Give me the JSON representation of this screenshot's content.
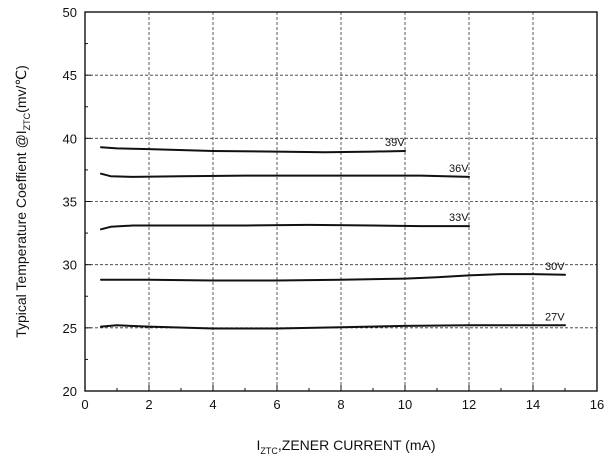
{
  "chart_data": {
    "type": "line",
    "title": "",
    "xlabel": {
      "main": "I",
      "sub": "ZTC",
      "rest": ",ZENER CURRENT (mA)"
    },
    "ylabel": {
      "main": "Typical Temperature Coeffient @I",
      "sub": "ZTC",
      "rest": "(mv/℃)"
    },
    "xlim": [
      0,
      16
    ],
    "ylim": [
      20,
      50
    ],
    "xticks": [
      0,
      2,
      4,
      6,
      8,
      10,
      12,
      14,
      16
    ],
    "yticks": [
      20,
      25,
      30,
      35,
      40,
      45,
      50
    ],
    "grid": true,
    "series": [
      {
        "name": "39V",
        "x": [
          0.5,
          1,
          2,
          4,
          6,
          7.5,
          9,
          10
        ],
        "y": [
          39.3,
          39.2,
          39.15,
          39.0,
          38.95,
          38.9,
          38.95,
          39.0
        ]
      },
      {
        "name": "36V",
        "x": [
          0.5,
          0.8,
          1.5,
          3,
          5,
          7,
          9,
          10.5,
          12
        ],
        "y": [
          37.2,
          37.0,
          36.95,
          37.0,
          37.05,
          37.05,
          37.05,
          37.05,
          36.95
        ]
      },
      {
        "name": "33V",
        "x": [
          0.5,
          0.8,
          1.5,
          3,
          5,
          7,
          9,
          10.5,
          12
        ],
        "y": [
          32.8,
          33.0,
          33.1,
          33.1,
          33.1,
          33.15,
          33.1,
          33.05,
          33.05
        ]
      },
      {
        "name": "30V",
        "x": [
          0.5,
          2,
          4,
          6,
          8,
          10,
          11,
          12,
          13,
          14,
          15
        ],
        "y": [
          28.8,
          28.8,
          28.75,
          28.75,
          28.8,
          28.9,
          29.0,
          29.15,
          29.25,
          29.25,
          29.2
        ]
      },
      {
        "name": "27V",
        "x": [
          0.5,
          1,
          2,
          4,
          6,
          8,
          10,
          12,
          14,
          15
        ],
        "y": [
          25.1,
          25.2,
          25.1,
          24.95,
          24.95,
          25.05,
          25.15,
          25.2,
          25.2,
          25.2
        ]
      }
    ]
  }
}
